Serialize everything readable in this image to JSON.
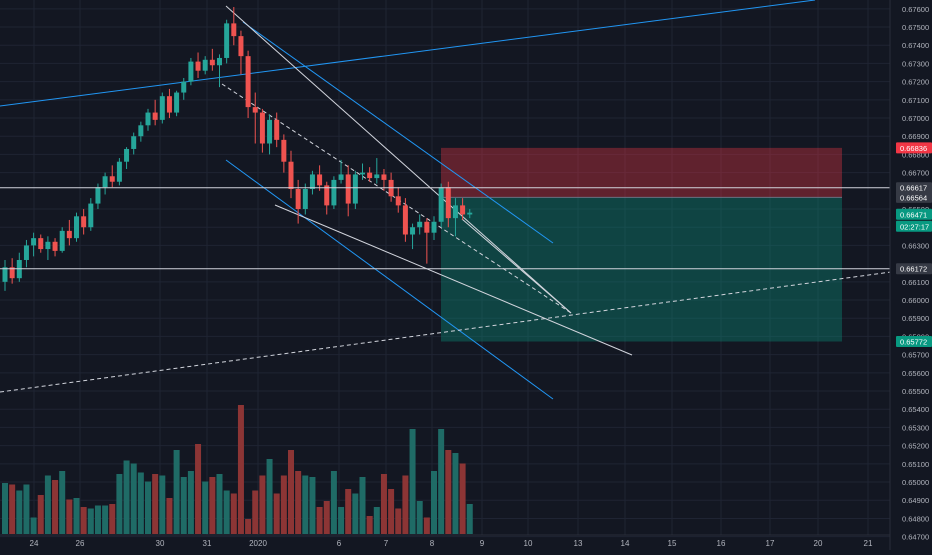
{
  "colors": {
    "background": "#131722",
    "grid": "#1f2433",
    "up": "#26a69a",
    "down": "#ef5350",
    "vol_up": "#1f6b66",
    "vol_down": "#8c3535",
    "axis_text": "#b2b5be",
    "channel": "#2196f3",
    "white_line": "#d1d4dc",
    "stop_zone": "rgba(242,54,69,0.35)",
    "target_zone": "rgba(8,153,129,0.35)",
    "badge_red": "#f23645",
    "badge_green": "#089981",
    "badge_gray": "#363a45"
  },
  "chart_data": {
    "type": "candlestick",
    "title": "",
    "ylim": [
      0.6472,
      0.6761
    ],
    "y_ticks": [
      "0.67600",
      "0.67500",
      "0.67400",
      "0.67300",
      "0.67200",
      "0.67100",
      "0.67000",
      "0.66900",
      "0.66800",
      "0.66700",
      "0.66500",
      "0.66400",
      "0.66300",
      "0.66100",
      "0.66000",
      "0.65900",
      "0.65800",
      "0.65700",
      "0.65600",
      "0.65500",
      "0.65400",
      "0.65300",
      "0.65200",
      "0.65100",
      "0.65000",
      "0.64900",
      "0.64800",
      "0.64700"
    ],
    "x_ticks": [
      "24",
      "26",
      "30",
      "31",
      "2020",
      "6",
      "7",
      "8",
      "9",
      "10",
      "13",
      "14",
      "15",
      "16",
      "17",
      "20",
      "21"
    ],
    "price_badges": [
      {
        "value": "0.66836",
        "kind": "red"
      },
      {
        "value": "0.66617",
        "kind": "gray"
      },
      {
        "value": "0.66564",
        "kind": "gray"
      },
      {
        "value": "0.66471",
        "kind": "green"
      },
      {
        "value": "02:27:17",
        "kind": "green_timer"
      },
      {
        "value": "0.66172",
        "kind": "gray"
      },
      {
        "value": "0.65772",
        "kind": "green"
      }
    ],
    "horizontal_levels": [
      0.66617,
      0.66172
    ],
    "position": {
      "entry": 0.66564,
      "stop": 0.66836,
      "target": 0.65772
    },
    "candles": [
      {
        "o": 0.661,
        "h": 0.6622,
        "l": 0.6605,
        "c": 0.6618
      },
      {
        "o": 0.6618,
        "h": 0.6623,
        "l": 0.6609,
        "c": 0.6612
      },
      {
        "o": 0.6612,
        "h": 0.6626,
        "l": 0.661,
        "c": 0.6622
      },
      {
        "o": 0.6622,
        "h": 0.6633,
        "l": 0.6618,
        "c": 0.663
      },
      {
        "o": 0.663,
        "h": 0.6637,
        "l": 0.6624,
        "c": 0.6634
      },
      {
        "o": 0.6634,
        "h": 0.6636,
        "l": 0.6626,
        "c": 0.6628
      },
      {
        "o": 0.6628,
        "h": 0.6635,
        "l": 0.6622,
        "c": 0.6632
      },
      {
        "o": 0.6632,
        "h": 0.6634,
        "l": 0.6624,
        "c": 0.6627
      },
      {
        "o": 0.6627,
        "h": 0.664,
        "l": 0.6626,
        "c": 0.6638
      },
      {
        "o": 0.6638,
        "h": 0.6644,
        "l": 0.663,
        "c": 0.6634
      },
      {
        "o": 0.6634,
        "h": 0.6648,
        "l": 0.6632,
        "c": 0.6646
      },
      {
        "o": 0.6646,
        "h": 0.665,
        "l": 0.6636,
        "c": 0.664
      },
      {
        "o": 0.664,
        "h": 0.6656,
        "l": 0.6638,
        "c": 0.6653
      },
      {
        "o": 0.6653,
        "h": 0.6664,
        "l": 0.665,
        "c": 0.6662
      },
      {
        "o": 0.6662,
        "h": 0.667,
        "l": 0.6658,
        "c": 0.6668
      },
      {
        "o": 0.6668,
        "h": 0.6674,
        "l": 0.6662,
        "c": 0.6665
      },
      {
        "o": 0.6665,
        "h": 0.6678,
        "l": 0.6663,
        "c": 0.6676
      },
      {
        "o": 0.6676,
        "h": 0.6684,
        "l": 0.6672,
        "c": 0.6683
      },
      {
        "o": 0.6683,
        "h": 0.6692,
        "l": 0.668,
        "c": 0.669
      },
      {
        "o": 0.669,
        "h": 0.6698,
        "l": 0.6687,
        "c": 0.6696
      },
      {
        "o": 0.6696,
        "h": 0.6705,
        "l": 0.6693,
        "c": 0.6703
      },
      {
        "o": 0.6703,
        "h": 0.671,
        "l": 0.6696,
        "c": 0.6699
      },
      {
        "o": 0.6699,
        "h": 0.6714,
        "l": 0.6697,
        "c": 0.6712
      },
      {
        "o": 0.6712,
        "h": 0.6716,
        "l": 0.67,
        "c": 0.6703
      },
      {
        "o": 0.6703,
        "h": 0.6715,
        "l": 0.6701,
        "c": 0.6714
      },
      {
        "o": 0.6714,
        "h": 0.6722,
        "l": 0.671,
        "c": 0.672
      },
      {
        "o": 0.672,
        "h": 0.6733,
        "l": 0.6718,
        "c": 0.6731
      },
      {
        "o": 0.6731,
        "h": 0.6736,
        "l": 0.6722,
        "c": 0.6726
      },
      {
        "o": 0.6726,
        "h": 0.6734,
        "l": 0.6724,
        "c": 0.6732
      },
      {
        "o": 0.6732,
        "h": 0.6738,
        "l": 0.6726,
        "c": 0.6729
      },
      {
        "o": 0.6729,
        "h": 0.6735,
        "l": 0.6717,
        "c": 0.6733
      },
      {
        "o": 0.6733,
        "h": 0.6754,
        "l": 0.673,
        "c": 0.6752
      },
      {
        "o": 0.6752,
        "h": 0.6761,
        "l": 0.674,
        "c": 0.6745
      },
      {
        "o": 0.6745,
        "h": 0.6748,
        "l": 0.6724,
        "c": 0.6734
      },
      {
        "o": 0.6734,
        "h": 0.6737,
        "l": 0.67,
        "c": 0.6706
      },
      {
        "o": 0.6706,
        "h": 0.6714,
        "l": 0.6686,
        "c": 0.6703
      },
      {
        "o": 0.6703,
        "h": 0.6705,
        "l": 0.6681,
        "c": 0.6686
      },
      {
        "o": 0.6686,
        "h": 0.6702,
        "l": 0.668,
        "c": 0.6699
      },
      {
        "o": 0.6699,
        "h": 0.6703,
        "l": 0.6684,
        "c": 0.6688
      },
      {
        "o": 0.6688,
        "h": 0.6691,
        "l": 0.667,
        "c": 0.6676
      },
      {
        "o": 0.6676,
        "h": 0.6682,
        "l": 0.6656,
        "c": 0.6661
      },
      {
        "o": 0.6661,
        "h": 0.6666,
        "l": 0.6642,
        "c": 0.665
      },
      {
        "o": 0.665,
        "h": 0.6664,
        "l": 0.6647,
        "c": 0.6661
      },
      {
        "o": 0.6661,
        "h": 0.6671,
        "l": 0.6658,
        "c": 0.6669
      },
      {
        "o": 0.6669,
        "h": 0.6674,
        "l": 0.666,
        "c": 0.6663
      },
      {
        "o": 0.6663,
        "h": 0.6665,
        "l": 0.6647,
        "c": 0.6652
      },
      {
        "o": 0.6652,
        "h": 0.6668,
        "l": 0.665,
        "c": 0.6666
      },
      {
        "o": 0.6666,
        "h": 0.6677,
        "l": 0.6664,
        "c": 0.6669
      },
      {
        "o": 0.6669,
        "h": 0.6674,
        "l": 0.6646,
        "c": 0.6653
      },
      {
        "o": 0.6653,
        "h": 0.6671,
        "l": 0.665,
        "c": 0.6669
      },
      {
        "o": 0.6669,
        "h": 0.6675,
        "l": 0.6666,
        "c": 0.667
      },
      {
        "o": 0.667,
        "h": 0.6673,
        "l": 0.6665,
        "c": 0.6667
      },
      {
        "o": 0.6667,
        "h": 0.6678,
        "l": 0.6664,
        "c": 0.6669
      },
      {
        "o": 0.6669,
        "h": 0.6672,
        "l": 0.666,
        "c": 0.6666
      },
      {
        "o": 0.6666,
        "h": 0.667,
        "l": 0.6654,
        "c": 0.6657
      },
      {
        "o": 0.6657,
        "h": 0.6662,
        "l": 0.6648,
        "c": 0.6652
      },
      {
        "o": 0.6652,
        "h": 0.6656,
        "l": 0.6632,
        "c": 0.6636
      },
      {
        "o": 0.6636,
        "h": 0.6642,
        "l": 0.6628,
        "c": 0.664
      },
      {
        "o": 0.664,
        "h": 0.6647,
        "l": 0.6636,
        "c": 0.6643
      },
      {
        "o": 0.6643,
        "h": 0.6645,
        "l": 0.662,
        "c": 0.6637
      },
      {
        "o": 0.6637,
        "h": 0.6646,
        "l": 0.6633,
        "c": 0.6643
      },
      {
        "o": 0.6643,
        "h": 0.6664,
        "l": 0.664,
        "c": 0.6662
      },
      {
        "o": 0.6662,
        "h": 0.6665,
        "l": 0.664,
        "c": 0.6645
      },
      {
        "o": 0.6645,
        "h": 0.6656,
        "l": 0.6635,
        "c": 0.6652
      },
      {
        "o": 0.6652,
        "h": 0.6656,
        "l": 0.6644,
        "c": 0.6647
      },
      {
        "o": 0.6647,
        "h": 0.665,
        "l": 0.6645,
        "c": 0.6648
      }
    ],
    "volumes": [
      0.34,
      0.33,
      0.29,
      0.33,
      0.11,
      0.26,
      0.39,
      0.36,
      0.42,
      0.23,
      0.24,
      0.18,
      0.17,
      0.19,
      0.19,
      0.2,
      0.4,
      0.49,
      0.47,
      0.41,
      0.35,
      0.4,
      0.39,
      0.24,
      0.56,
      0.38,
      0.42,
      0.6,
      0.35,
      0.38,
      0.4,
      0.29,
      0.27,
      0.86,
      0.1,
      0.29,
      0.39,
      0.5,
      0.27,
      0.39,
      0.56,
      0.42,
      0.39,
      0.38,
      0.18,
      0.22,
      0.42,
      0.18,
      0.3,
      0.27,
      0.38,
      0.12,
      0.18,
      0.4,
      0.3,
      0.17,
      0.39,
      0.7,
      0.22,
      0.11,
      0.42,
      0.7,
      0.56,
      0.54,
      0.47,
      0.2
    ]
  }
}
